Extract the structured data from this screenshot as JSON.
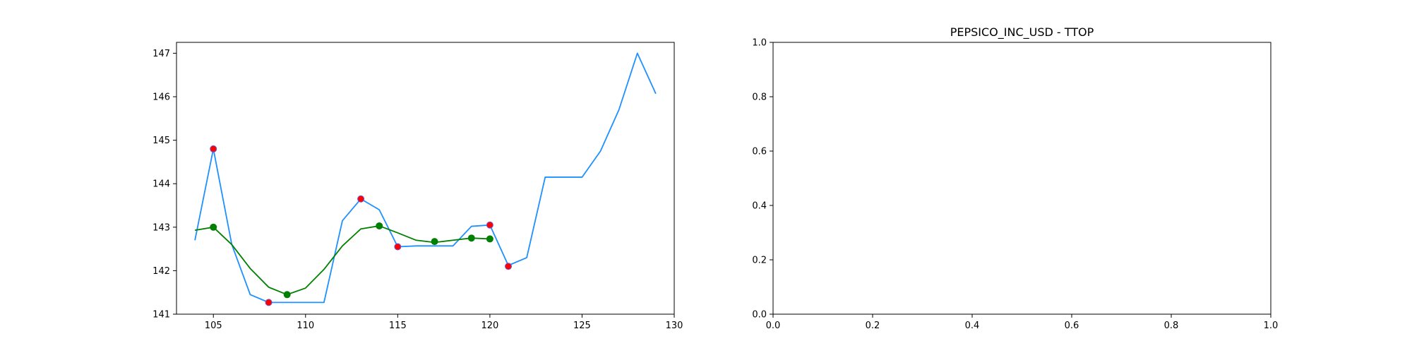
{
  "chart_data": [
    {
      "type": "line",
      "title": "",
      "xlabel": "",
      "ylabel": "",
      "xlim": [
        103,
        130
      ],
      "ylim": [
        141,
        147.25
      ],
      "xticks": [
        105,
        110,
        115,
        120,
        125,
        130
      ],
      "yticks": [
        141,
        142,
        143,
        144,
        145,
        146,
        147
      ],
      "grid": false,
      "series": [
        {
          "color": "#1e90ff",
          "x": [
            104,
            105,
            106,
            107,
            108,
            109,
            110,
            111,
            112,
            113,
            114,
            115,
            116,
            117,
            118,
            119,
            120,
            121,
            122,
            123,
            124,
            125,
            126,
            127,
            128,
            129
          ],
          "y": [
            142.7,
            144.8,
            142.6,
            141.45,
            141.27,
            141.27,
            141.27,
            141.27,
            143.15,
            143.65,
            143.4,
            142.55,
            142.57,
            142.57,
            142.57,
            143.02,
            143.05,
            142.12,
            142.3,
            144.15,
            144.15,
            144.15,
            144.75,
            145.7,
            147.0,
            146.07
          ]
        },
        {
          "color": "#008000",
          "x": [
            104,
            105,
            106,
            107,
            108,
            109,
            110,
            111,
            112,
            113,
            114,
            115,
            116,
            117,
            118,
            119,
            120
          ],
          "y": [
            142.93,
            143.0,
            142.6,
            142.05,
            141.62,
            141.45,
            141.6,
            142.03,
            142.57,
            142.96,
            143.03,
            142.87,
            142.7,
            142.65,
            142.7,
            142.75,
            142.73
          ],
          "markers": {
            "x": [
              105,
              109,
              114,
              117,
              119,
              120
            ],
            "y": [
              143.0,
              141.45,
              143.03,
              142.67,
              142.75,
              142.73
            ]
          }
        }
      ],
      "points": {
        "color": "#ff0000",
        "edge": "#6a5acd",
        "x": [
          105,
          108,
          113,
          115,
          120,
          121
        ],
        "y": [
          144.8,
          141.27,
          143.65,
          142.55,
          143.05,
          142.1
        ]
      }
    },
    {
      "type": "line",
      "title": "PEPSICO_INC_USD - TTOP",
      "xlabel": "",
      "ylabel": "",
      "xlim": [
        0,
        1
      ],
      "ylim": [
        0,
        1
      ],
      "xticks": [
        "0.0",
        "0.2",
        "0.4",
        "0.6",
        "0.8",
        "1.0"
      ],
      "yticks": [
        "0.0",
        "0.2",
        "0.4",
        "0.6",
        "0.8",
        "1.0"
      ],
      "grid": false,
      "series": []
    }
  ]
}
